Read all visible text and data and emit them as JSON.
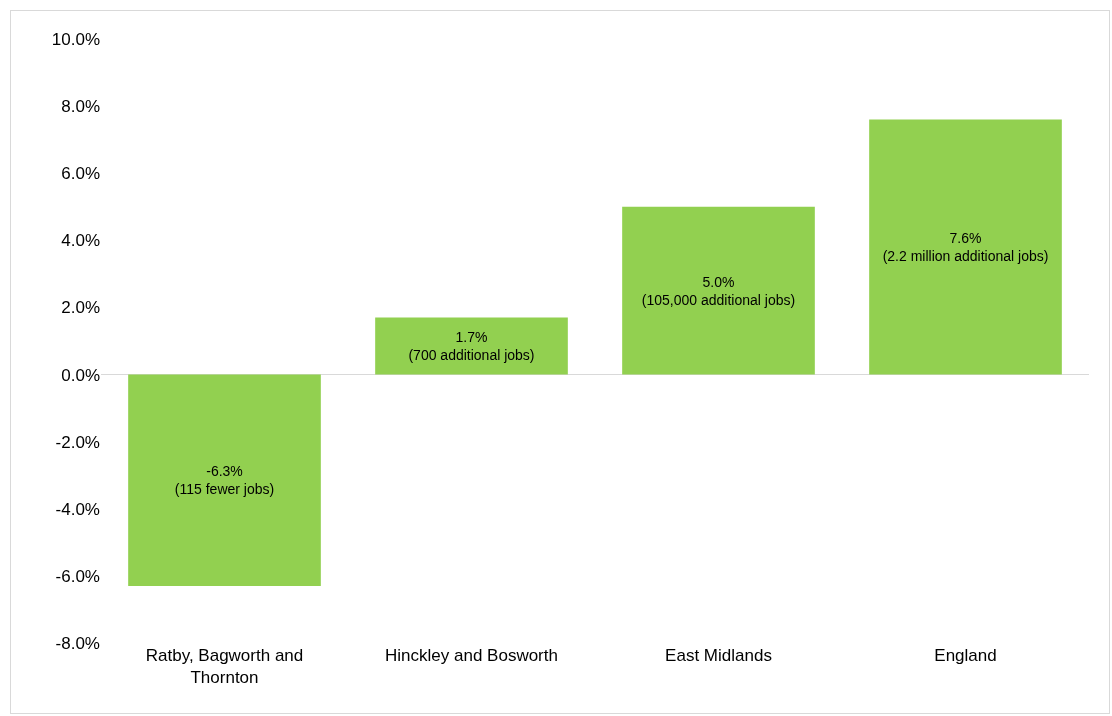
{
  "chart_data": {
    "type": "bar",
    "categories": [
      "Ratby, Bagworth and Thornton",
      "Hinckley and Bosworth",
      "East Midlands",
      "England"
    ],
    "values": [
      -6.3,
      1.7,
      5.0,
      7.6
    ],
    "color": "#92d050",
    "value_labels": [
      "-6.3%\n(115 fewer jobs)",
      "1.7%\n(700 additional jobs)",
      "5.0%\n(105,000 additional jobs)",
      "7.6%\n(2.2 million additional jobs)"
    ],
    "ylim": [
      -8,
      10
    ],
    "yticks": [
      {
        "value": -8,
        "label": "-8.0%"
      },
      {
        "value": -6,
        "label": "-6.0%"
      },
      {
        "value": -4,
        "label": "-4.0%"
      },
      {
        "value": -2,
        "label": "-2.0%"
      },
      {
        "value": 0,
        "label": "0.0%"
      },
      {
        "value": 2,
        "label": "2.0%"
      },
      {
        "value": 4,
        "label": "4.0%"
      },
      {
        "value": 6,
        "label": "6.0%"
      },
      {
        "value": 8,
        "label": "8.0%"
      },
      {
        "value": 10,
        "label": "10.0%"
      }
    ],
    "tick_labels": "xy"
  }
}
